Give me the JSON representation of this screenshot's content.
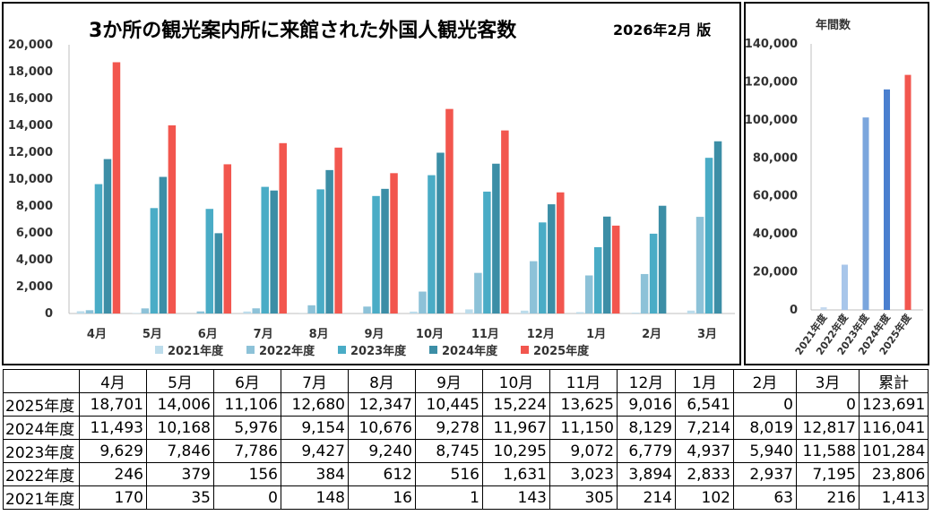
{
  "title": "3か所の観光案内所に来館された外国人観光客数",
  "edition": "2026年2月 版",
  "side_title": "年間数",
  "colors": {
    "2021年度": "#bcdceb",
    "2022年度": "#8dc2d8",
    "2023年度": "#4aacc6",
    "2024年度": "#3c8ea6",
    "2025年度": "#f2564e"
  },
  "annual_colors": [
    "#c5d9ef",
    "#a8c6ea",
    "#7ba6dd",
    "#4a7fcf",
    "#f2564e"
  ],
  "chart_data": [
    {
      "type": "bar",
      "title": "3か所の観光案内所に来館された外国人観光客数",
      "categories": [
        "4月",
        "5月",
        "6月",
        "7月",
        "8月",
        "9月",
        "10月",
        "11月",
        "12月",
        "1月",
        "2月",
        "3月"
      ],
      "ylim": [
        0,
        20000
      ],
      "yticks": [
        "0",
        "2,000",
        "4,000",
        "6,000",
        "8,000",
        "10,000",
        "12,000",
        "14,000",
        "16,000",
        "18,000",
        "20,000"
      ],
      "grid": false,
      "legend": "bottom",
      "series": [
        {
          "name": "2021年度",
          "values": [
            170,
            35,
            0,
            148,
            16,
            1,
            143,
            305,
            214,
            102,
            63,
            216
          ]
        },
        {
          "name": "2022年度",
          "values": [
            246,
            379,
            156,
            384,
            612,
            516,
            1631,
            3023,
            3894,
            2833,
            2937,
            7195
          ]
        },
        {
          "name": "2023年度",
          "values": [
            9629,
            7846,
            7786,
            9427,
            9240,
            8745,
            10295,
            9072,
            6779,
            4937,
            5940,
            11588
          ]
        },
        {
          "name": "2024年度",
          "values": [
            11493,
            10168,
            5976,
            9154,
            10676,
            9278,
            11967,
            11150,
            8129,
            7214,
            8019,
            12817
          ]
        },
        {
          "name": "2025年度",
          "values": [
            18701,
            14006,
            11106,
            12680,
            12347,
            10445,
            15224,
            13625,
            9016,
            6541,
            0,
            0
          ]
        }
      ]
    },
    {
      "type": "bar",
      "title": "年間数",
      "categories": [
        "2021年度",
        "2022年度",
        "2023年度",
        "2024年度",
        "2025年度"
      ],
      "values": [
        1413,
        23806,
        101284,
        116041,
        123691
      ],
      "ylim": [
        0,
        140000
      ],
      "yticks": [
        "0",
        "20,000",
        "40,000",
        "60,000",
        "80,000",
        "100,000",
        "120,000",
        "140,000"
      ],
      "grid": false
    }
  ],
  "table": {
    "headers": [
      "",
      "4月",
      "5月",
      "6月",
      "7月",
      "8月",
      "9月",
      "10月",
      "11月",
      "12月",
      "1月",
      "2月",
      "3月",
      "累計"
    ],
    "rows": [
      [
        "2025年度",
        "18,701",
        "14,006",
        "11,106",
        "12,680",
        "12,347",
        "10,445",
        "15,224",
        "13,625",
        "9,016",
        "6,541",
        "0",
        "0",
        "123,691"
      ],
      [
        "2024年度",
        "11,493",
        "10,168",
        "5,976",
        "9,154",
        "10,676",
        "9,278",
        "11,967",
        "11,150",
        "8,129",
        "7,214",
        "8,019",
        "12,817",
        "116,041"
      ],
      [
        "2023年度",
        "9,629",
        "7,846",
        "7,786",
        "9,427",
        "9,240",
        "8,745",
        "10,295",
        "9,072",
        "6,779",
        "4,937",
        "5,940",
        "11,588",
        "101,284"
      ],
      [
        "2022年度",
        "246",
        "379",
        "156",
        "384",
        "612",
        "516",
        "1,631",
        "3,023",
        "3,894",
        "2,833",
        "2,937",
        "7,195",
        "23,806"
      ],
      [
        "2021年度",
        "170",
        "35",
        "0",
        "148",
        "16",
        "1",
        "143",
        "305",
        "214",
        "102",
        "63",
        "216",
        "1,413"
      ]
    ]
  }
}
